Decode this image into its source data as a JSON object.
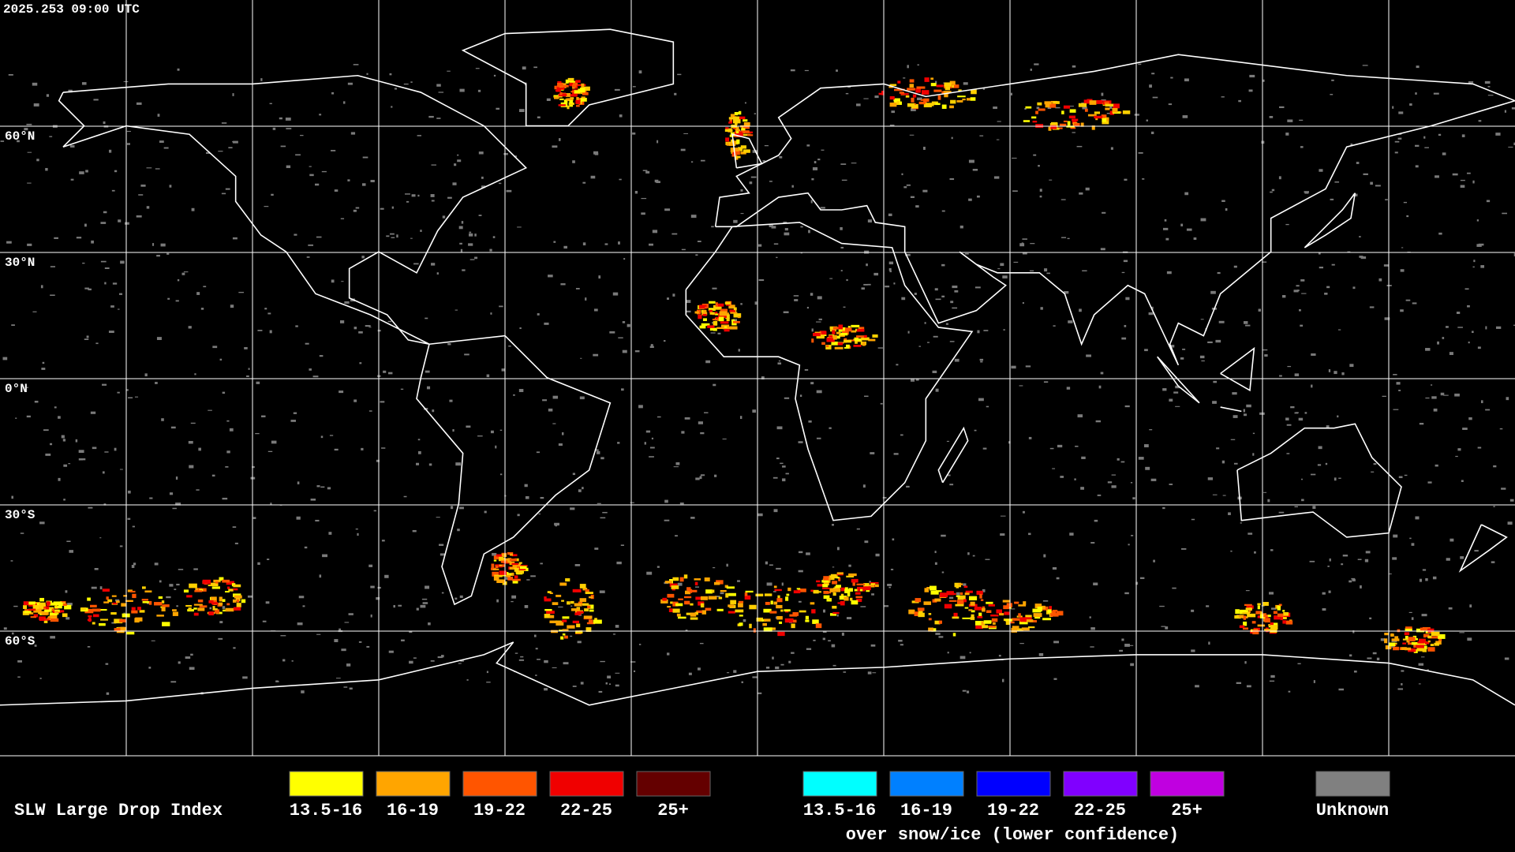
{
  "timestamp": "2025.253 09:00 UTC",
  "latitude_labels": [
    "60°N",
    "30°N",
    "0°N",
    "30°S",
    "60°S"
  ],
  "legend": {
    "title": "SLW Large Drop Index",
    "items": [
      {
        "label": "13.5-16",
        "color": "#ffff00"
      },
      {
        "label": "16-19",
        "color": "#ffa500"
      },
      {
        "label": "19-22",
        "color": "#ff5500"
      },
      {
        "label": "22-25",
        "color": "#f00000"
      },
      {
        "label": "25+",
        "color": "#640000"
      }
    ],
    "snow_ice_items": [
      {
        "label": "13.5-16",
        "color": "#00ffff"
      },
      {
        "label": "16-19",
        "color": "#0080ff"
      },
      {
        "label": "19-22",
        "color": "#0000ff"
      },
      {
        "label": "22-25",
        "color": "#8000ff"
      },
      {
        "label": "25+",
        "color": "#c000e0"
      }
    ],
    "snow_ice_caption": "over snow/ice (lower confidence)",
    "unknown": {
      "label": "Unknown",
      "color": "#808080"
    }
  }
}
